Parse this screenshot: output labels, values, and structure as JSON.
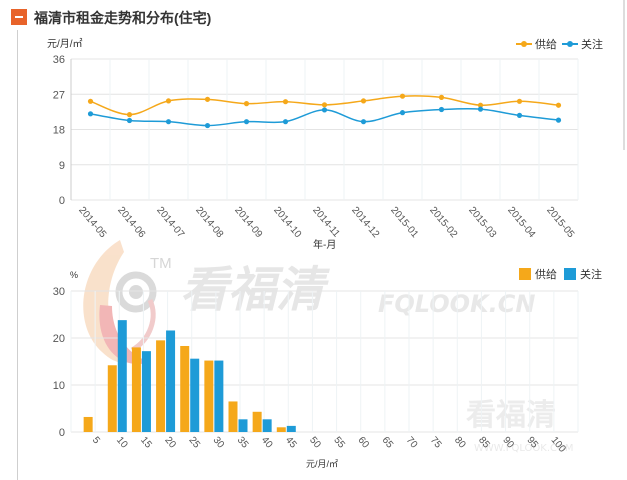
{
  "page": {
    "title": "福清市租金走势和分布(住宅)"
  },
  "colors": {
    "supply": "#f5a81a",
    "attention": "#1e9bd7",
    "accent": "#e8632a",
    "grid": "#e4e4e4",
    "axis_text": "#555555"
  },
  "watermark": {
    "tm": "TM",
    "brand_cn": "看福清",
    "brand_en": "FQLOOK.CN",
    "corner_cn": "看福清",
    "corner_en": "WWW.FQLOOK.COM"
  },
  "chart_data": [
    {
      "type": "line",
      "title": "",
      "xlabel": "年-月",
      "ylabel": "元/月/㎡",
      "ylim": [
        0,
        36
      ],
      "yticks": [
        0,
        9,
        18,
        27,
        36
      ],
      "x": [
        "2014-05",
        "2014-06",
        "2014-07",
        "2014-08",
        "2014-09",
        "2014-10",
        "2014-11",
        "2014-12",
        "2015-01",
        "2015-02",
        "2015-03",
        "2015-04",
        "2015-05"
      ],
      "series": [
        {
          "name": "供给",
          "values": [
            25.2,
            21.8,
            25.3,
            25.7,
            24.6,
            25.1,
            24.3,
            25.3,
            26.5,
            26.2,
            24.2,
            25.2,
            24.2
          ]
        },
        {
          "name": "关注",
          "values": [
            22.0,
            20.3,
            20.0,
            19.0,
            20.0,
            20.0,
            23.0,
            20.0,
            22.3,
            23.1,
            23.2,
            21.6,
            20.4
          ]
        }
      ],
      "legend": "top-right",
      "grid": true
    },
    {
      "type": "bar",
      "title": "",
      "xlabel": "元/月/㎡",
      "ylabel": "%",
      "ylim": [
        0,
        30
      ],
      "yticks": [
        0,
        10,
        20,
        30
      ],
      "categories": [
        "5",
        "10",
        "15",
        "20",
        "25",
        "30",
        "35",
        "40",
        "45",
        "50",
        "55",
        "60",
        "65",
        "70",
        "75",
        "80",
        "85",
        "90",
        "95",
        "100"
      ],
      "series": [
        {
          "name": "供给",
          "values": [
            3.2,
            14.2,
            18.0,
            19.5,
            18.3,
            15.2,
            6.5,
            4.3,
            1.0,
            0,
            0,
            0,
            0,
            0,
            0,
            0,
            0,
            0,
            0,
            0
          ]
        },
        {
          "name": "关注",
          "values": [
            0,
            23.8,
            17.2,
            21.6,
            15.6,
            15.2,
            2.7,
            2.7,
            1.3,
            0,
            0,
            0,
            0,
            0,
            0,
            0,
            0,
            0,
            0,
            0
          ]
        }
      ],
      "legend": "top-right",
      "grid": true
    }
  ]
}
